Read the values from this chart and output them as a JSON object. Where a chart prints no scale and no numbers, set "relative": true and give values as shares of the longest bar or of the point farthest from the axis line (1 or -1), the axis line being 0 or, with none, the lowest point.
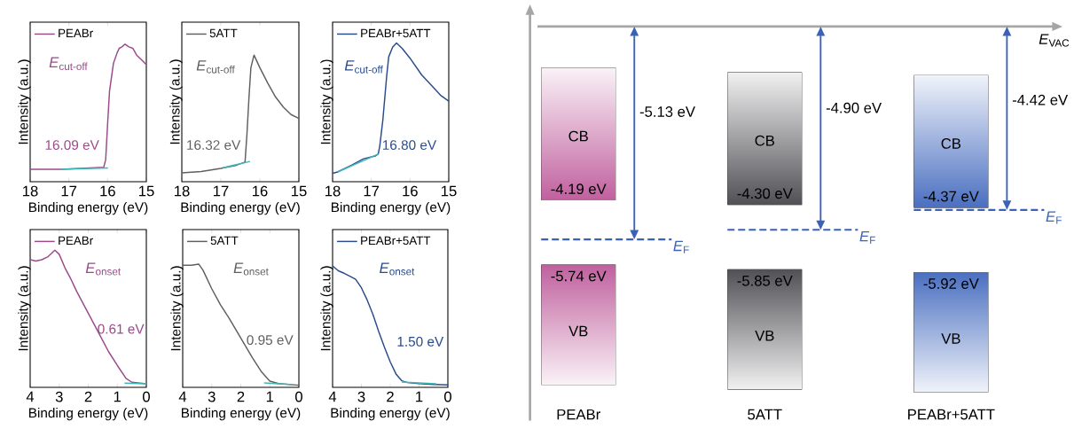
{
  "chart_data": [
    {
      "type": "line",
      "relative": true,
      "xlim": [
        18,
        15
      ],
      "xticks": [
        18,
        17,
        16,
        15
      ],
      "xlabel": "Binding energy (eV)",
      "ylabel": "Intensity (a.u.)",
      "legend": "top left",
      "annotations": [
        "*E*$_{cut-off}$",
        "16.09 eV"
      ],
      "series": [
        {
          "name": "PEABr",
          "color": "#9b4a8a",
          "x": [
            18,
            17.2,
            16.1,
            16.05,
            16.0,
            15.95,
            15.9,
            15.85,
            15.75,
            15.7,
            15.63,
            15.55,
            15.45,
            15.35,
            15.25,
            15.1,
            15.0
          ],
          "values": [
            0.09,
            0.09,
            0.105,
            0.16,
            0.42,
            0.66,
            0.76,
            0.86,
            0.94,
            0.97,
            0.98,
            1.0,
            0.98,
            0.97,
            0.92,
            0.88,
            0.85
          ]
        },
        {
          "color": "#3fb7b7",
          "x": [
            17.21,
            15.99
          ],
          "values": [
            0.09,
            0.1
          ]
        }
      ]
    },
    {
      "type": "line",
      "relative": true,
      "xlim": [
        18,
        15
      ],
      "xticks": [
        18,
        17,
        16,
        15
      ],
      "xlabel": "Binding energy (eV)",
      "ylabel": "Intensity (a.u.)",
      "legend": "top left",
      "annotations": [
        "*E*$_{cut-off}$",
        "16.32 eV"
      ],
      "series": [
        {
          "name": "5ATT",
          "color": "#606060",
          "x": [
            18,
            17.5,
            17.0,
            16.6,
            16.38,
            16.33,
            16.28,
            16.23,
            16.15,
            16.0,
            15.8,
            15.6,
            15.4,
            15.2,
            15.0
          ],
          "values": [
            0.07,
            0.08,
            0.105,
            0.13,
            0.155,
            0.38,
            0.66,
            0.9,
            1.0,
            0.9,
            0.78,
            0.67,
            0.59,
            0.53,
            0.5
          ]
        },
        {
          "color": "#3fb7b7",
          "x": [
            16.95,
            16.25
          ],
          "values": [
            0.11,
            0.16
          ]
        }
      ]
    },
    {
      "type": "line",
      "relative": true,
      "xlim": [
        18,
        15
      ],
      "xticks": [
        18,
        17,
        16,
        15
      ],
      "xlabel": "Binding energy (eV)",
      "ylabel": "Intensity (a.u.)",
      "legend": "top left",
      "annotations": [
        "*E*$_{cut-off}$",
        "16.80 eV"
      ],
      "series": [
        {
          "name": "PEABr+5ATT",
          "color": "#2b4c8c",
          "x": [
            18,
            17.87,
            17.5,
            17.2,
            16.9,
            16.82,
            16.78,
            16.7,
            16.6,
            16.55,
            16.45,
            16.35,
            16.2,
            16.0,
            15.7,
            15.4,
            15.2,
            15.0
          ],
          "values": [
            0.06,
            0.07,
            0.12,
            0.165,
            0.185,
            0.2,
            0.26,
            0.45,
            0.77,
            0.9,
            0.97,
            1.0,
            0.96,
            0.89,
            0.77,
            0.68,
            0.62,
            0.58
          ]
        },
        {
          "color": "#3fb7b7",
          "x": [
            17.87,
            16.81
          ],
          "values": [
            0.07,
            0.2
          ]
        }
      ]
    },
    {
      "type": "line",
      "relative": true,
      "xlim": [
        4,
        0
      ],
      "xticks": [
        4,
        3,
        2,
        1,
        0
      ],
      "xlabel": "Binding energy (eV)",
      "ylabel": "Intensity (a.u.)",
      "legend": "top left",
      "annotations": [
        "*E*$_{onset}$",
        "0.61 eV"
      ],
      "series": [
        {
          "name": "PEABr",
          "color": "#9b4a8a",
          "x": [
            4,
            3.8,
            3.6,
            3.4,
            3.15,
            3.0,
            2.8,
            2.6,
            2.4,
            2.0,
            1.6,
            1.3,
            1.0,
            0.7,
            0.5,
            0
          ],
          "values": [
            0.93,
            0.92,
            0.93,
            0.95,
            1.0,
            0.97,
            0.87,
            0.79,
            0.7,
            0.54,
            0.38,
            0.26,
            0.16,
            0.065,
            0.037,
            0.026
          ]
        },
        {
          "color": "#3fb7b7",
          "x": [
            0.75,
            0
          ],
          "values": [
            0.03,
            0.026
          ]
        }
      ]
    },
    {
      "type": "line",
      "relative": true,
      "xlim": [
        4,
        0
      ],
      "xticks": [
        4,
        3,
        2,
        1,
        0
      ],
      "xlabel": "Binding energy (eV)",
      "ylabel": "Intensity (a.u.)",
      "legend": "top left",
      "annotations": [
        "*E*$_{onset}$",
        "0.95 eV"
      ],
      "series": [
        {
          "name": "5ATT",
          "color": "#606060",
          "x": [
            4,
            3.7,
            3.45,
            3.3,
            3.0,
            2.7,
            2.4,
            2.0,
            1.6,
            1.3,
            1.0,
            0.7,
            0
          ],
          "values": [
            0.99,
            0.99,
            1.0,
            0.95,
            0.8,
            0.67,
            0.56,
            0.4,
            0.24,
            0.13,
            0.05,
            0.03,
            0.017
          ]
        },
        {
          "color": "#3fb7b7",
          "x": [
            1.2,
            0.3
          ],
          "values": [
            0.036,
            0.024
          ]
        }
      ]
    },
    {
      "type": "line",
      "relative": true,
      "xlim": [
        4,
        0
      ],
      "xticks": [
        4,
        3,
        2,
        1,
        0
      ],
      "xlabel": "Binding energy (eV)",
      "ylabel": "Intensity (a.u.)",
      "legend": "top left",
      "annotations": [
        "*E*$_{onset}$",
        "1.50 eV"
      ],
      "series": [
        {
          "name": "PEABr+5ATT",
          "color": "#2b4c8c",
          "x": [
            4,
            3.8,
            3.6,
            3.4,
            3.2,
            3.0,
            2.8,
            2.6,
            2.4,
            2.2,
            2.0,
            1.8,
            1.6,
            1.4,
            1.0,
            0.5,
            0
          ],
          "values": [
            1.0,
            0.96,
            0.94,
            0.915,
            0.89,
            0.82,
            0.72,
            0.6,
            0.46,
            0.33,
            0.21,
            0.11,
            0.054,
            0.039,
            0.03,
            0.024,
            0.02
          ]
        },
        {
          "color": "#3fb7b7",
          "x": [
            1.6,
            0.4
          ],
          "values": [
            0.044,
            0.029
          ]
        }
      ]
    },
    {
      "type": "other",
      "categories": [
        "PEABr",
        "5ATT",
        "PEABr+5ATT"
      ],
      "colors": [
        "#c0609e",
        "#505055",
        "#4a6fc0"
      ],
      "annotations": [
        "*E*$_{VAC}$"
      ],
      "series": [
        {
          "name": "CB",
          "values": [
            -4.19,
            -4.3,
            -4.37
          ],
          "value_labels": [
            "-4.19 eV",
            "-4.30 eV",
            "-4.37 eV"
          ]
        },
        {
          "name": "VB",
          "values": [
            -5.74,
            -5.85,
            -5.92
          ],
          "value_labels": [
            "-5.74 eV",
            "-5.85 eV",
            "-5.92 eV"
          ]
        },
        {
          "name": "*E*$_{F}$",
          "color": "#3a62b8",
          "line_style": "dashed",
          "values": [
            -5.13,
            -4.9,
            -4.42
          ],
          "value_labels": [
            "-5.13 eV",
            "-4.90 eV",
            "-4.42 eV"
          ]
        }
      ]
    }
  ]
}
